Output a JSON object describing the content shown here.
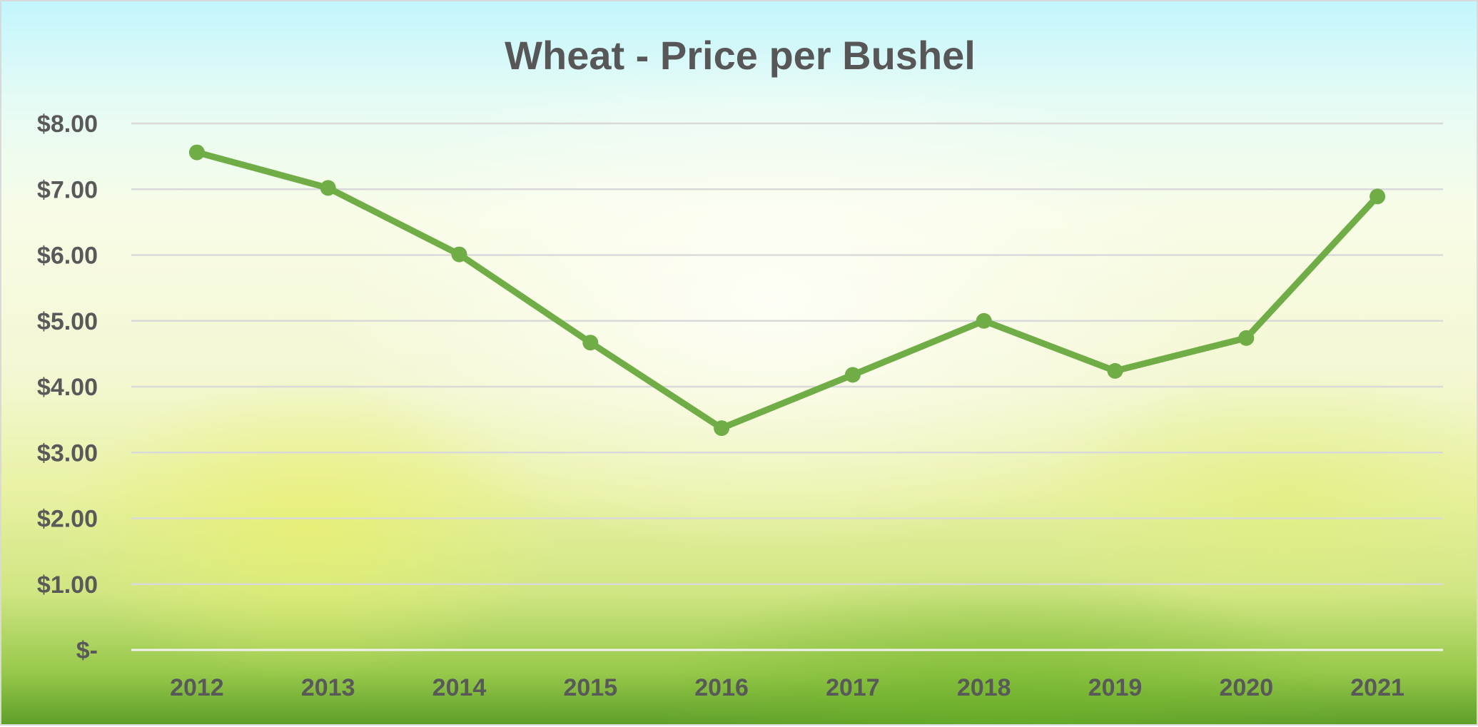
{
  "chart_data": {
    "type": "line",
    "title": "Wheat - Price per Bushel",
    "xlabel": "",
    "ylabel": "",
    "categories": [
      "2012",
      "2013",
      "2014",
      "2015",
      "2016",
      "2017",
      "2018",
      "2019",
      "2020",
      "2021"
    ],
    "series": [
      {
        "values": [
          7.56,
          7.02,
          6.01,
          4.67,
          3.37,
          4.18,
          5.0,
          4.24,
          4.74,
          6.89
        ]
      }
    ],
    "ylim": [
      0,
      8
    ],
    "yticks": [
      0,
      1,
      2,
      3,
      4,
      5,
      6,
      7,
      8
    ],
    "ytick_labels": [
      "$-",
      "$1.00",
      "$2.00",
      "$3.00",
      "$4.00",
      "$5.00",
      "$6.00",
      "$7.00",
      "$8.00"
    ],
    "grid": true,
    "legend": "none",
    "colors": {
      "series": "#70ad47",
      "text": "#595959",
      "gridline": "#d9d9d9"
    }
  }
}
